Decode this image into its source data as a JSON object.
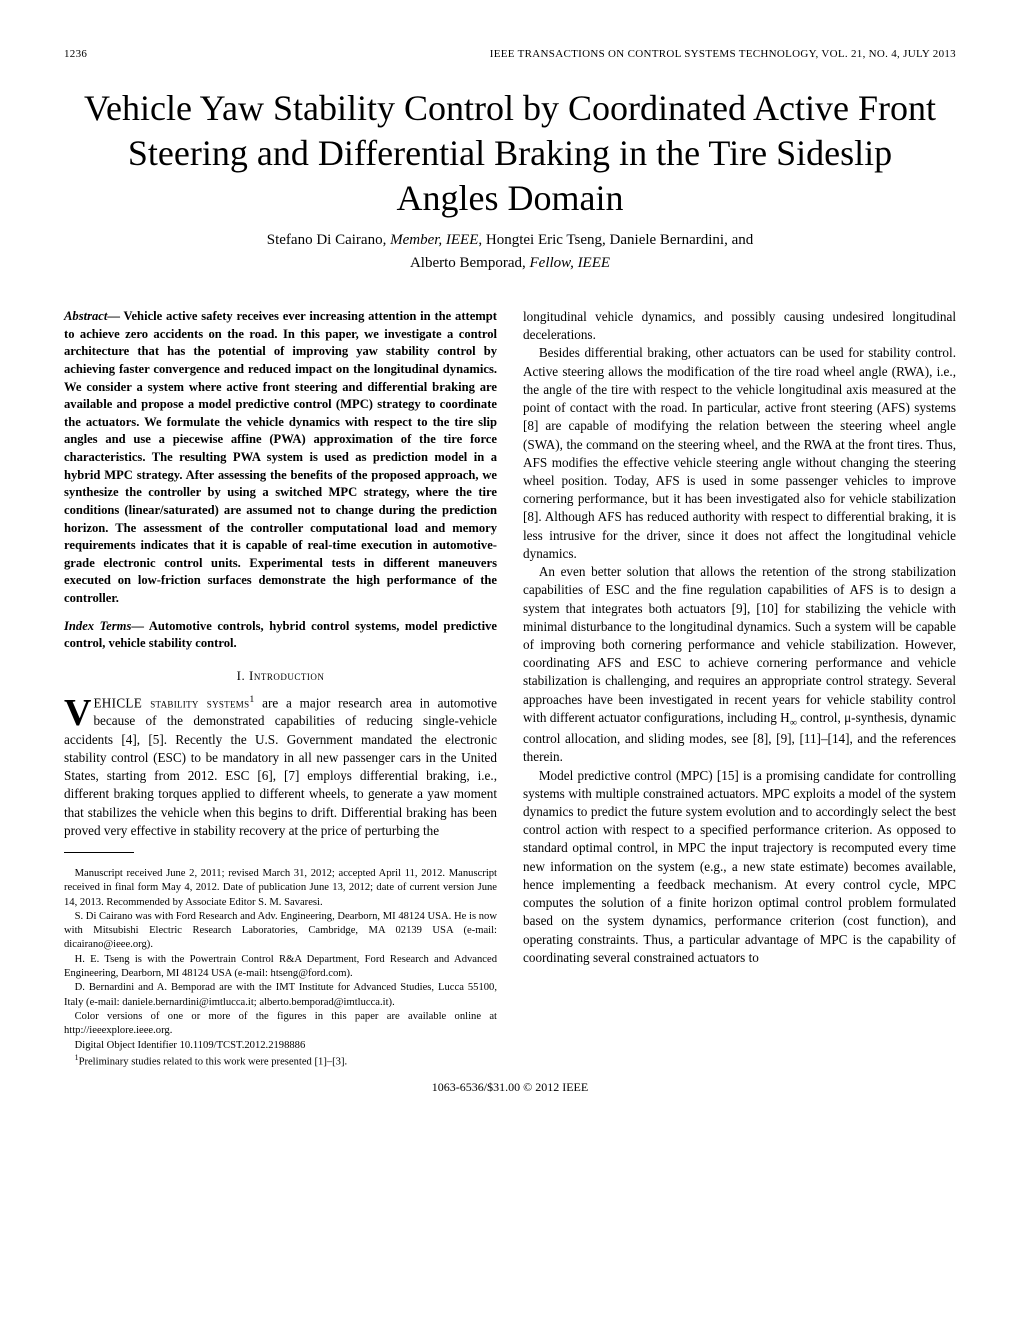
{
  "header": {
    "page_number": "1236",
    "journal": "IEEE TRANSACTIONS ON CONTROL SYSTEMS TECHNOLOGY, VOL. 21, NO. 4, JULY 2013"
  },
  "title": "Vehicle Yaw Stability Control by Coordinated Active Front Steering and Differential Braking in the Tire Sideslip Angles Domain",
  "authors_line1": "Stefano Di Cairano, ",
  "authors_role1": "Member, IEEE",
  "authors_line1b": ", Hongtei Eric Tseng, Daniele Bernardini, and",
  "authors_line2": "Alberto Bemporad, ",
  "authors_role2": "Fellow, IEEE",
  "abstract_lead": "Abstract",
  "abstract_body": "— Vehicle active safety receives ever increasing attention in the attempt to achieve zero accidents on the road. In this paper, we investigate a control architecture that has the potential of improving yaw stability control by achieving faster convergence and reduced impact on the longitudinal dynamics. We consider a system where active front steering and differential braking are available and propose a model predictive control (MPC) strategy to coordinate the actuators. We formulate the vehicle dynamics with respect to the tire slip angles and use a piecewise affine (PWA) approximation of the tire force characteristics. The resulting PWA system is used as prediction model in a hybrid MPC strategy. After assessing the benefits of the proposed approach, we synthesize the controller by using a switched MPC strategy, where the tire conditions (linear/saturated) are assumed not to change during the prediction horizon. The assessment of the controller computational load and memory requirements indicates that it is capable of real-time execution in automotive-grade electronic control units. Experimental tests in different maneuvers executed on low-friction surfaces demonstrate the high performance of the controller.",
  "index_lead": "Index Terms",
  "index_body": "— Automotive controls, hybrid control systems, model predictive control, vehicle stability control.",
  "section1": "I. Introduction",
  "intro_dropcap": "V",
  "intro_first": "EHICLE stability systems",
  "intro_sup1": "1",
  "intro_cont": " are a major research area in automotive because of the demonstrated capabilities of reducing single-vehicle accidents [4], [5]. Recently the U.S. Government mandated the electronic stability control (ESC) to be mandatory in all new passenger cars in the United States, starting from 2012. ESC [6], [7] employs differential braking, i.e., different braking torques applied to different wheels, to generate a yaw moment that stabilizes the vehicle when this begins to drift. Differential braking has been proved very effective in stability recovery at the price of perturbing the",
  "fn1": "Manuscript received June 2, 2011; revised March 31, 2012; accepted April 11, 2012. Manuscript received in final form May 4, 2012. Date of publication June 13, 2012; date of current version June 14, 2013. Recommended by Associate Editor S. M. Savaresi.",
  "fn2": "S. Di Cairano was with Ford Research and Adv. Engineering, Dearborn, MI 48124 USA. He is now with Mitsubishi Electric Research Laboratories, Cambridge, MA 02139 USA (e-mail: dicairano@ieee.org).",
  "fn3": "H. E. Tseng is with the Powertrain Control R&A Department, Ford Research and Advanced Engineering, Dearborn, MI 48124 USA (e-mail: htseng@ford.com).",
  "fn4": "D. Bernardini and A. Bemporad are with the IMT Institute for Advanced Studies, Lucca 55100, Italy (e-mail: daniele.bernardini@imtlucca.it; alberto.bemporad@imtlucca.it).",
  "fn5": "Color versions of one or more of the figures in this paper are available online at http://ieeexplore.ieee.org.",
  "fn6": "Digital Object Identifier 10.1109/TCST.2012.2198886",
  "fn7_sup": "1",
  "fn7": "Preliminary studies related to this work were presented [1]–[3].",
  "col2_p1": "longitudinal vehicle dynamics, and possibly causing undesired longitudinal decelerations.",
  "col2_p2": "Besides differential braking, other actuators can be used for stability control. Active steering allows the modification of the tire road wheel angle (RWA), i.e., the angle of the tire with respect to the vehicle longitudinal axis measured at the point of contact with the road. In particular, active front steering (AFS) systems [8] are capable of modifying the relation between the steering wheel angle (SWA), the command on the steering wheel, and the RWA at the front tires. Thus, AFS modifies the effective vehicle steering angle without changing the steering wheel position. Today, AFS is used in some passenger vehicles to improve cornering performance, but it has been investigated also for vehicle stabilization [8]. Although AFS has reduced authority with respect to differential braking, it is less intrusive for the driver, since it does not affect the longitudinal vehicle dynamics.",
  "col2_p3a": "An even better solution that allows the retention of the strong stabilization capabilities of ESC and the fine regulation capabilities of AFS is to design a system that integrates both actuators [9], [10] for stabilizing the vehicle with minimal disturbance to the longitudinal dynamics. Such a system will be capable of improving both cornering performance and vehicle stabilization. However, coordinating AFS and ESC to achieve cornering performance and vehicle stabilization is challenging, and requires an appropriate control strategy. Several approaches have been investigated in recent years for vehicle stability control with different actuator configurations, including ",
  "col2_hinf_h": "H",
  "col2_hinf_inf": "∞",
  "col2_p3b": " control, μ-synthesis, dynamic control allocation, and sliding modes, see [8], [9], [11]–[14], and the references therein.",
  "col2_p4": "Model predictive control (MPC) [15] is a promising candidate for controlling systems with multiple constrained actuators. MPC exploits a model of the system dynamics to predict the future system evolution and to accordingly select the best control action with respect to a specified performance criterion. As opposed to standard optimal control, in MPC the input trajectory is recomputed every time new information on the system (e.g., a new state estimate) becomes available, hence implementing a feedback mechanism. At every control cycle, MPC computes the solution of a finite horizon optimal control problem formulated based on the system dynamics, performance criterion (cost function), and operating constraints. Thus, a particular advantage of MPC is the capability of coordinating several constrained actuators to",
  "footer": "1063-6536/$31.00 © 2012 IEEE"
}
